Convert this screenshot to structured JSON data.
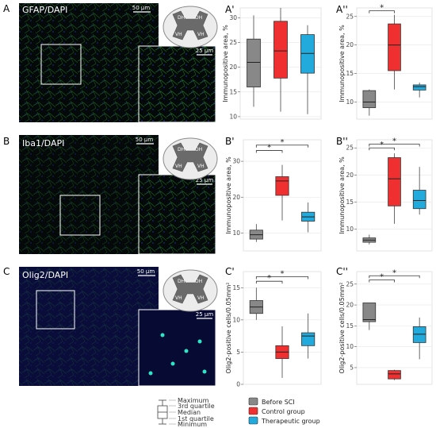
{
  "panel_labels": {
    "A": "A",
    "A1": "A'",
    "A2": "A''",
    "B": "B",
    "B1": "B'",
    "B2": "B''",
    "C": "C",
    "C1": "C'",
    "C2": "C''"
  },
  "micrographs": [
    {
      "stain": "GFAP/DAPI",
      "scale_main": "50 µm",
      "scale_inset": "25 µm"
    },
    {
      "stain": "Iba1/DAPI",
      "scale_main": "50 µm",
      "scale_inset": "25 µm"
    },
    {
      "stain": "Olig2/DAPI",
      "scale_main": "50 µm",
      "scale_inset": "25 µm"
    }
  ],
  "cord_labels": {
    "dh": "DH",
    "vh": "VH"
  },
  "colors": {
    "before": "#888888",
    "control": "#f03030",
    "therapeutic": "#22aadd"
  },
  "legend": {
    "groups": [
      "Before SCI",
      "Control group",
      "Therapeutic group"
    ],
    "box_key": [
      "Maximum",
      "3rd quartile",
      "Median",
      "1st quartile",
      "Minimum"
    ]
  },
  "significance_mark": "*",
  "chart_data": [
    {
      "id": "A1",
      "type": "box",
      "ylabel": "Immunopositive area, %",
      "ylim": [
        9.5,
        32
      ],
      "ticks": [
        10,
        15,
        20,
        25,
        30
      ],
      "boxes": [
        {
          "group": "Before SCI",
          "min": 12,
          "q1": 16,
          "median": 21,
          "q3": 25.7,
          "max": 30.5
        },
        {
          "group": "Control group",
          "min": 11,
          "q1": 17.8,
          "median": 23.3,
          "q3": 29.3,
          "max": 32
        },
        {
          "group": "Therapeutic group",
          "min": 10.5,
          "q1": 18.8,
          "median": 22.8,
          "q3": 26.6,
          "max": 28.5
        }
      ],
      "brackets": []
    },
    {
      "id": "A2",
      "type": "box",
      "ylabel": "Immunopositive area, %",
      "ylim": [
        7,
        26.5
      ],
      "ticks": [
        10,
        15,
        20,
        25
      ],
      "boxes": [
        {
          "group": "Before SCI",
          "min": 7.6,
          "q1": 9,
          "median": 10,
          "q3": 12,
          "max": 12.2
        },
        {
          "group": "Control group",
          "min": 12.2,
          "q1": 15.5,
          "median": 20,
          "q3": 23.7,
          "max": 25.3
        },
        {
          "group": "Therapeutic group",
          "min": 10.8,
          "q1": 12.1,
          "median": 12.7,
          "q3": 13,
          "max": 13.4
        }
      ],
      "brackets": [
        {
          "from": 0,
          "to": 1,
          "y": 26
        }
      ]
    },
    {
      "id": "B1",
      "type": "box",
      "ylabel": "Immunopositive area, %",
      "ylim": [
        5,
        36
      ],
      "ticks": [
        10,
        20,
        30
      ],
      "boxes": [
        {
          "group": "Before SCI",
          "min": 7.5,
          "q1": 8.3,
          "median": 9.5,
          "q3": 10.8,
          "max": 12.5
        },
        {
          "group": "Control group",
          "min": 13.5,
          "q1": 20.5,
          "median": 24.5,
          "q3": 25.7,
          "max": 29
        },
        {
          "group": "Therapeutic group",
          "min": 10.2,
          "q1": 13.3,
          "median": 14.5,
          "q3": 15.8,
          "max": 18.5
        }
      ],
      "brackets": [
        {
          "from": 0,
          "to": 1,
          "y": 33
        },
        {
          "from": 0,
          "to": 2,
          "y": 34.5
        }
      ]
    },
    {
      "id": "B2",
      "type": "box",
      "ylabel": "Immunopositive area, %",
      "ylim": [
        6,
        26.5
      ],
      "ticks": [
        10,
        15,
        20,
        25
      ],
      "boxes": [
        {
          "group": "Before SCI",
          "min": 7.2,
          "q1": 7.6,
          "median": 8,
          "q3": 8.4,
          "max": 9
        },
        {
          "group": "Control group",
          "min": 11,
          "q1": 14.3,
          "median": 19.3,
          "q3": 23.2,
          "max": 24
        },
        {
          "group": "Therapeutic group",
          "min": 12.7,
          "q1": 13.8,
          "median": 15.3,
          "q3": 17.2,
          "max": 21.5
        }
      ],
      "brackets": [
        {
          "from": 0,
          "to": 1,
          "y": 25
        },
        {
          "from": 0,
          "to": 2,
          "y": 25.7
        }
      ]
    },
    {
      "id": "C1",
      "type": "box",
      "ylabel": "Olig2-positive cells/0.05mm²",
      "ylim": [
        0,
        17.5
      ],
      "ticks": [
        0,
        5,
        10,
        15
      ],
      "boxes": [
        {
          "group": "Before SCI",
          "min": 10,
          "q1": 11,
          "median": 12,
          "q3": 13,
          "max": 15
        },
        {
          "group": "Control group",
          "min": 1,
          "q1": 4,
          "median": 5,
          "q3": 6,
          "max": 9
        },
        {
          "group": "Therapeutic group",
          "min": 4,
          "q1": 6,
          "median": 7.5,
          "q3": 8,
          "max": 11
        }
      ],
      "brackets": [
        {
          "from": 0,
          "to": 1,
          "y": 16
        },
        {
          "from": 0,
          "to": 2,
          "y": 16.7
        }
      ]
    },
    {
      "id": "C2",
      "type": "box",
      "ylabel": "Olig2-positive cells/0.05mm²",
      "ylim": [
        1,
        28
      ],
      "ticks": [
        5,
        10,
        15,
        20,
        25
      ],
      "boxes": [
        {
          "group": "Before SCI",
          "min": 14,
          "q1": 16,
          "median": 16.5,
          "q3": 20.5,
          "max": 20.5
        },
        {
          "group": "Control group",
          "min": 2,
          "q1": 2.3,
          "median": 3.5,
          "q3": 4.3,
          "max": 4.5
        },
        {
          "group": "Therapeutic group",
          "min": 7,
          "q1": 11,
          "median": 13,
          "q3": 14.8,
          "max": 17
        }
      ],
      "brackets": [
        {
          "from": 0,
          "to": 1,
          "y": 26
        },
        {
          "from": 0,
          "to": 2,
          "y": 27
        }
      ]
    }
  ]
}
